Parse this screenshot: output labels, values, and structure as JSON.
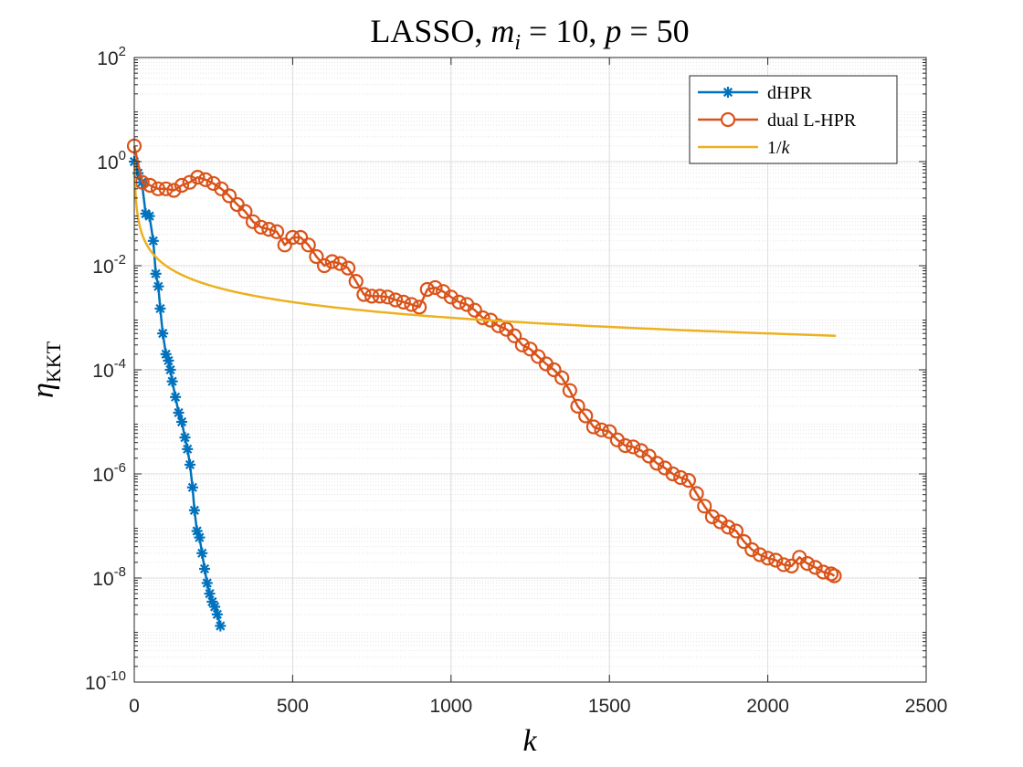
{
  "chart_data": {
    "type": "line",
    "title_parts": {
      "prefix": "LASSO, ",
      "m": "m",
      "i": "i",
      "eq1": " = 10, ",
      "p": "p",
      "eq2": " = 50"
    },
    "xlabel": "k",
    "ylabel": {
      "eta": "η",
      "sub": "KKT"
    },
    "xlim": [
      0,
      2500
    ],
    "ylim_log10": [
      -10,
      2
    ],
    "yscale": "log",
    "grid": true,
    "legend_position": "top-right",
    "x_ticks": [
      "0",
      "500",
      "1000",
      "1500",
      "2000",
      "2500"
    ],
    "y_ticks": [
      {
        "base": "10",
        "exp": "2"
      },
      {
        "base": "10",
        "exp": "0"
      },
      {
        "base": "10",
        "exp": "-2"
      },
      {
        "base": "10",
        "exp": "-4"
      },
      {
        "base": "10",
        "exp": "-6"
      },
      {
        "base": "10",
        "exp": "-8"
      },
      {
        "base": "10",
        "exp": "-10"
      }
    ],
    "series": [
      {
        "name": "dHPR",
        "color": "#0072BD",
        "marker": "asterisk",
        "points": [
          [
            0,
            1.0
          ],
          [
            12,
            0.6
          ],
          [
            24,
            0.4
          ],
          [
            36,
            0.1
          ],
          [
            48,
            0.09
          ],
          [
            60,
            0.03
          ],
          [
            68,
            0.007
          ],
          [
            76,
            0.004
          ],
          [
            82,
            0.0015
          ],
          [
            90,
            0.0005
          ],
          [
            100,
            0.0002
          ],
          [
            108,
            0.00015
          ],
          [
            114,
            0.0001
          ],
          [
            120,
            6e-05
          ],
          [
            130,
            3e-05
          ],
          [
            140,
            1.5e-05
          ],
          [
            150,
            1e-05
          ],
          [
            160,
            5e-06
          ],
          [
            168,
            3e-06
          ],
          [
            176,
            1.5e-06
          ],
          [
            184,
            5.5e-07
          ],
          [
            190,
            2e-07
          ],
          [
            198,
            8e-08
          ],
          [
            206,
            6e-08
          ],
          [
            214,
            3e-08
          ],
          [
            222,
            1.5e-08
          ],
          [
            230,
            8e-09
          ],
          [
            238,
            5e-09
          ],
          [
            246,
            3.5e-09
          ],
          [
            254,
            2.8e-09
          ],
          [
            262,
            2e-09
          ],
          [
            272,
            1.2e-09
          ]
        ]
      },
      {
        "name": "dual L-HPR",
        "color": "#D95319",
        "marker": "circle",
        "points": [
          [
            0,
            2.0
          ],
          [
            25,
            0.4
          ],
          [
            50,
            0.35
          ],
          [
            75,
            0.3
          ],
          [
            100,
            0.3
          ],
          [
            125,
            0.28
          ],
          [
            150,
            0.35
          ],
          [
            175,
            0.4
          ],
          [
            200,
            0.5
          ],
          [
            225,
            0.45
          ],
          [
            250,
            0.38
          ],
          [
            275,
            0.3
          ],
          [
            300,
            0.22
          ],
          [
            325,
            0.15
          ],
          [
            350,
            0.11
          ],
          [
            375,
            0.07
          ],
          [
            400,
            0.055
          ],
          [
            425,
            0.05
          ],
          [
            450,
            0.045
          ],
          [
            475,
            0.025
          ],
          [
            500,
            0.035
          ],
          [
            525,
            0.035
          ],
          [
            550,
            0.025
          ],
          [
            575,
            0.015
          ],
          [
            600,
            0.01
          ],
          [
            625,
            0.012
          ],
          [
            650,
            0.011
          ],
          [
            675,
            0.009
          ],
          [
            700,
            0.005
          ],
          [
            725,
            0.0028
          ],
          [
            750,
            0.0026
          ],
          [
            775,
            0.0026
          ],
          [
            800,
            0.0025
          ],
          [
            825,
            0.0022
          ],
          [
            850,
            0.002
          ],
          [
            875,
            0.0018
          ],
          [
            900,
            0.0016
          ],
          [
            925,
            0.0035
          ],
          [
            950,
            0.0038
          ],
          [
            975,
            0.0032
          ],
          [
            1000,
            0.0025
          ],
          [
            1025,
            0.002
          ],
          [
            1050,
            0.0018
          ],
          [
            1075,
            0.0014
          ],
          [
            1100,
            0.001
          ],
          [
            1125,
            0.0009
          ],
          [
            1150,
            0.0007
          ],
          [
            1175,
            0.0006
          ],
          [
            1200,
            0.00045
          ],
          [
            1225,
            0.0003
          ],
          [
            1250,
            0.00025
          ],
          [
            1275,
            0.00018
          ],
          [
            1300,
            0.00013
          ],
          [
            1325,
            0.0001
          ],
          [
            1350,
            7e-05
          ],
          [
            1375,
            4e-05
          ],
          [
            1400,
            2e-05
          ],
          [
            1425,
            1.3e-05
          ],
          [
            1450,
            8e-06
          ],
          [
            1475,
            7e-06
          ],
          [
            1500,
            6.5e-06
          ],
          [
            1525,
            4.5e-06
          ],
          [
            1550,
            3.5e-06
          ],
          [
            1575,
            3.3e-06
          ],
          [
            1600,
            2.8e-06
          ],
          [
            1625,
            2.2e-06
          ],
          [
            1650,
            1.6e-06
          ],
          [
            1675,
            1.3e-06
          ],
          [
            1700,
            1e-06
          ],
          [
            1725,
            8.5e-07
          ],
          [
            1750,
            7.5e-07
          ],
          [
            1775,
            4.2e-07
          ],
          [
            1800,
            2.4e-07
          ],
          [
            1825,
            1.5e-07
          ],
          [
            1850,
            1.2e-07
          ],
          [
            1875,
            9.5e-08
          ],
          [
            1900,
            8e-08
          ],
          [
            1925,
            5e-08
          ],
          [
            1950,
            3.5e-08
          ],
          [
            1975,
            2.8e-08
          ],
          [
            2000,
            2.4e-08
          ],
          [
            2025,
            2.2e-08
          ],
          [
            2050,
            1.8e-08
          ],
          [
            2075,
            1.7e-08
          ],
          [
            2100,
            2.5e-08
          ],
          [
            2125,
            1.9e-08
          ],
          [
            2150,
            1.6e-08
          ],
          [
            2175,
            1.3e-08
          ],
          [
            2200,
            1.2e-08
          ],
          [
            2210,
            1.1e-08
          ]
        ]
      },
      {
        "name": "1/k",
        "color": "#EDB120",
        "marker": "none",
        "function": "1/k",
        "k_range": [
          1,
          2215
        ]
      }
    ]
  }
}
